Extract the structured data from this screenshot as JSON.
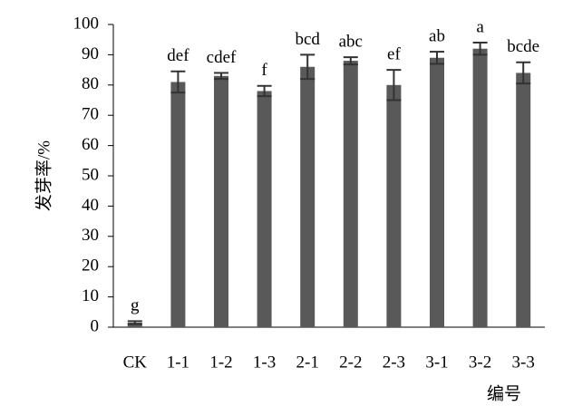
{
  "chart_data": {
    "type": "bar",
    "y_label": "发芽率/%",
    "x_label": "编号",
    "categories": [
      "CK",
      "1-1",
      "1-2",
      "1-3",
      "2-1",
      "2-2",
      "2-3",
      "3-1",
      "3-2",
      "3-3"
    ],
    "values": [
      1.5,
      81,
      83,
      78,
      86,
      88,
      80,
      89,
      92,
      84
    ],
    "errors": [
      0.5,
      3.5,
      1,
      1.7,
      4,
      1.2,
      5,
      2,
      2,
      3.5
    ],
    "significance_letters": [
      "g",
      "def",
      "cdef",
      "f",
      "bcd",
      "abc",
      "ef",
      "ab",
      "a",
      "bcde"
    ],
    "color": "#595959",
    "ylim": [
      0,
      100
    ],
    "yticks": [
      0,
      10,
      20,
      30,
      40,
      50,
      60,
      70,
      80,
      90,
      100
    ]
  }
}
